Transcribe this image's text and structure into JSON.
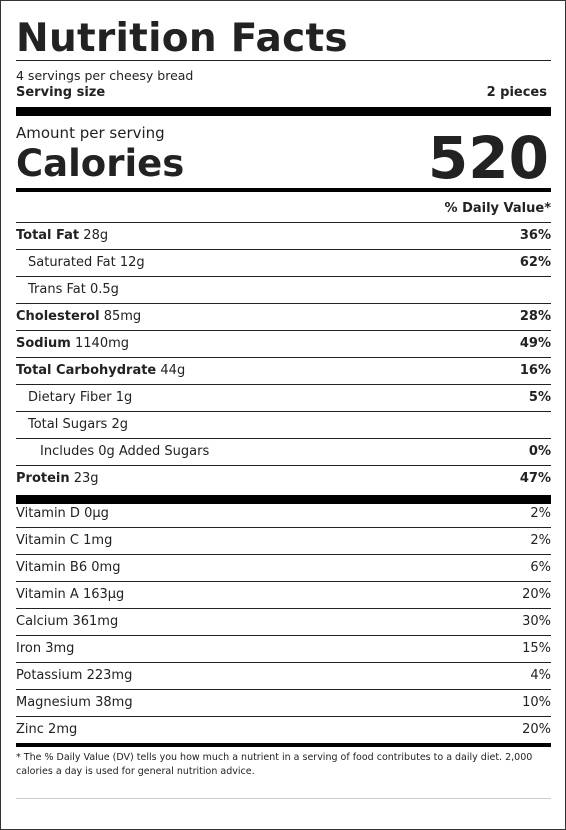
{
  "title": "Nutrition Facts",
  "servings_per": "4 servings per cheesy bread",
  "serving_size_label": "Serving size",
  "serving_size_value": "2 pieces",
  "amount_per_serving": "Amount per serving",
  "calories_label": "Calories",
  "calories_value": "520",
  "daily_value_header": "% Daily Value*",
  "nutrients": [
    {
      "name": "Total Fat",
      "amount": "28g",
      "dv": "36%"
    },
    {
      "name": "Saturated Fat",
      "amount": "12g",
      "dv": "62%"
    },
    {
      "name": "Trans Fat",
      "amount": "0.5g",
      "dv": ""
    },
    {
      "name": "Cholesterol",
      "amount": "85mg",
      "dv": "28%"
    },
    {
      "name": "Sodium",
      "amount": "1140mg",
      "dv": "49%"
    },
    {
      "name": "Total Carbohydrate",
      "amount": "44g",
      "dv": "16%"
    },
    {
      "name": "Dietary Fiber",
      "amount": "1g",
      "dv": "5%"
    },
    {
      "name": "Total Sugars",
      "amount": "2g",
      "dv": ""
    },
    {
      "name": "Includes 0g Added Sugars",
      "amount": "",
      "dv": "0%"
    },
    {
      "name": "Protein",
      "amount": "23g",
      "dv": "47%"
    }
  ],
  "vitamins": [
    {
      "name": "Vitamin D",
      "amount": "0µg",
      "dv": "2%"
    },
    {
      "name": "Vitamin C",
      "amount": "1mg",
      "dv": "2%"
    },
    {
      "name": "Vitamin B6",
      "amount": "0mg",
      "dv": "6%"
    },
    {
      "name": "Vitamin A",
      "amount": "163µg",
      "dv": "20%"
    },
    {
      "name": "Calcium",
      "amount": "361mg",
      "dv": "30%"
    },
    {
      "name": "Iron",
      "amount": "3mg",
      "dv": "15%"
    },
    {
      "name": "Potassium",
      "amount": "223mg",
      "dv": "4%"
    },
    {
      "name": "Magnesium",
      "amount": "38mg",
      "dv": "10%"
    },
    {
      "name": "Zinc",
      "amount": "2mg",
      "dv": "20%"
    }
  ],
  "footnote": "* The % Daily Value (DV) tells you how much a nutrient in a serving of food contributes to a daily diet. 2,000 calories a day is used for general nutrition advice."
}
